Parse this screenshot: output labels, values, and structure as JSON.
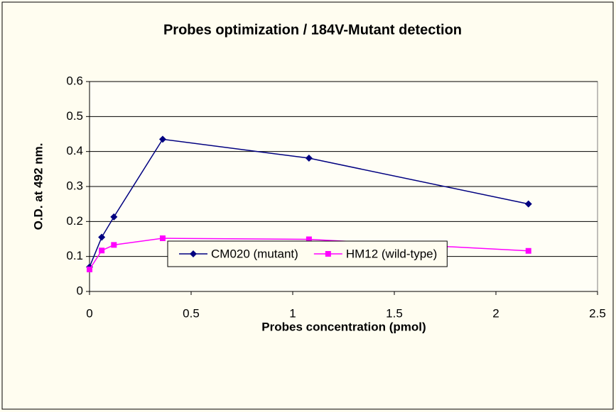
{
  "chart_data": {
    "type": "line",
    "title": "Probes optimization / 184V-Mutant detection",
    "x_label": "Probes concentration (pmol)",
    "y_label": "O.D. at 492 nm.",
    "x": [
      0,
      0.06,
      0.12,
      0.36,
      1.08,
      2.16
    ],
    "series": [
      {
        "name": "CM020 (mutant)",
        "color": "#000080",
        "marker": "diamond",
        "values": [
          0.07,
          0.155,
          0.213,
          0.435,
          0.381,
          0.25
        ]
      },
      {
        "name": "HM12 (wild-type)",
        "color": "#ff00ff",
        "marker": "square",
        "values": [
          0.063,
          0.117,
          0.133,
          0.152,
          0.149,
          0.116
        ]
      }
    ],
    "xlim": [
      0,
      2.5
    ],
    "xticks": [
      0,
      0.5,
      1,
      1.5,
      2,
      2.5
    ],
    "ylim": [
      0,
      0.6
    ],
    "yticks": [
      0,
      0.1,
      0.2,
      0.3,
      0.4,
      0.5,
      0.6
    ],
    "grid": true,
    "legend": "bottom"
  }
}
